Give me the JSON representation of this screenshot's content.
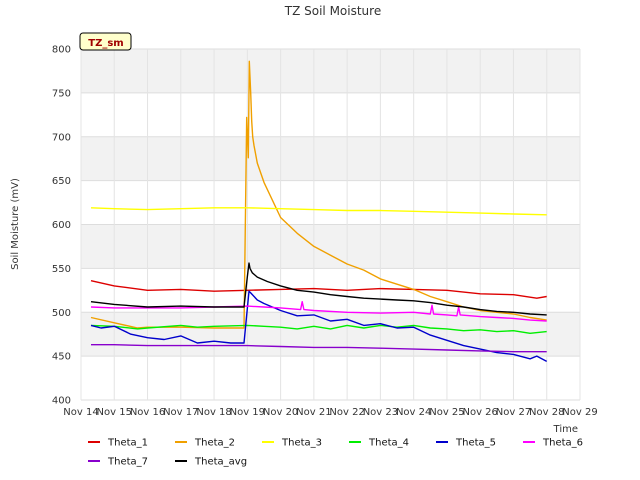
{
  "chart_data": {
    "type": "line",
    "title": "TZ Soil Moisture",
    "badge": "TZ_sm",
    "xlabel": "Time",
    "ylabel": "Soil Moisture (mV)",
    "xlim": [
      14,
      29
    ],
    "ylim": [
      400,
      800
    ],
    "x_ticks": [
      14,
      15,
      16,
      17,
      18,
      19,
      20,
      21,
      22,
      23,
      24,
      25,
      26,
      27,
      28,
      29
    ],
    "x_tick_labels": [
      "Nov 14",
      "Nov 15",
      "Nov 16",
      "Nov 17",
      "Nov 18",
      "Nov 19",
      "Nov 20",
      "Nov 21",
      "Nov 22",
      "Nov 23",
      "Nov 24",
      "Nov 25",
      "Nov 26",
      "Nov 27",
      "Nov 28",
      "Nov 29"
    ],
    "y_ticks": [
      400,
      450,
      500,
      550,
      600,
      650,
      700,
      750,
      800
    ],
    "y_tick_labels": [
      "400",
      "450",
      "500",
      "550",
      "600",
      "650",
      "700",
      "750",
      "800"
    ],
    "series": [
      {
        "name": "Theta_1",
        "color": "#dd0000",
        "x": [
          14.3,
          15,
          16,
          17,
          18,
          19,
          20,
          21,
          22,
          23,
          24,
          25,
          26,
          27,
          27.7,
          28
        ],
        "y": [
          536,
          530,
          525,
          526,
          524,
          525,
          526,
          527,
          525,
          527,
          526,
          525,
          521,
          520,
          516,
          518
        ]
      },
      {
        "name": "Theta_2",
        "color": "#f0a000",
        "x": [
          14.3,
          15,
          15.7,
          16,
          17,
          18,
          18.9,
          18.98,
          19.03,
          19.06,
          19.1,
          19.13,
          19.16,
          19.2,
          19.3,
          19.5,
          20,
          20.5,
          21,
          21.5,
          22,
          22.5,
          23,
          23.5,
          24,
          24.5,
          25,
          25.5,
          26,
          26.5,
          27,
          27.5,
          28
        ],
        "y": [
          494,
          488,
          482,
          483,
          483,
          482,
          482,
          722,
          676,
          786,
          750,
          718,
          700,
          690,
          670,
          648,
          608,
          590,
          575,
          565,
          555,
          548,
          538,
          532,
          526,
          518,
          512,
          506,
          502,
          500,
          498,
          494,
          491
        ]
      },
      {
        "name": "Theta_3",
        "color": "#ffff00",
        "x": [
          14.3,
          15,
          16,
          17,
          18,
          19,
          20,
          21,
          22,
          23,
          24,
          25,
          26,
          27,
          28
        ],
        "y": [
          619,
          618,
          617,
          618,
          619,
          619,
          618,
          617,
          616,
          616,
          615,
          614,
          613,
          612,
          611
        ]
      },
      {
        "name": "Theta_4",
        "color": "#00ee00",
        "x": [
          14.3,
          15,
          15.7,
          16,
          17,
          17.5,
          18,
          19,
          19.5,
          20,
          20.5,
          21,
          21.5,
          22,
          22.5,
          23,
          23.5,
          24,
          24.5,
          25,
          25.5,
          26,
          26.5,
          27,
          27.5,
          28
        ],
        "y": [
          485,
          484,
          481,
          482,
          485,
          483,
          484,
          485,
          484,
          483,
          481,
          484,
          481,
          485,
          482,
          485,
          483,
          485,
          482,
          481,
          479,
          480,
          478,
          479,
          476,
          478
        ]
      },
      {
        "name": "Theta_5",
        "color": "#0000cc",
        "x": [
          14.3,
          14.6,
          15,
          15.5,
          16,
          16.5,
          17,
          17.5,
          18,
          18.5,
          18.9,
          19.05,
          19.1,
          19.3,
          19.5,
          20,
          20.5,
          21,
          21.5,
          22,
          22.5,
          23,
          23.5,
          24,
          24.5,
          25,
          25.5,
          26,
          26.5,
          27,
          27.5,
          27.7,
          28
        ],
        "y": [
          485,
          482,
          484,
          475,
          471,
          469,
          473,
          465,
          467,
          465,
          465,
          524,
          522,
          514,
          510,
          502,
          496,
          497,
          490,
          492,
          485,
          487,
          482,
          483,
          474,
          468,
          462,
          458,
          454,
          452,
          447,
          450,
          444
        ]
      },
      {
        "name": "Theta_6",
        "color": "#ff00ff",
        "x": [
          14.3,
          15,
          16,
          17,
          18,
          19,
          19.5,
          20,
          20.6,
          20.65,
          20.7,
          21,
          22,
          23,
          24,
          24.5,
          24.55,
          24.6,
          25,
          25.3,
          25.35,
          25.4,
          26,
          26.5,
          27,
          27.5,
          28
        ],
        "y": [
          506,
          505,
          505,
          505,
          506,
          507,
          506,
          505,
          503,
          512,
          503,
          502,
          500,
          499,
          500,
          498,
          508,
          498,
          497,
          496,
          506,
          497,
          495,
          494,
          493,
          491,
          490
        ]
      },
      {
        "name": "Theta_7",
        "color": "#8800cc",
        "x": [
          14.3,
          15,
          16,
          17,
          18,
          19,
          20,
          21,
          22,
          23,
          24,
          25,
          26,
          27,
          28
        ],
        "y": [
          463,
          463,
          462,
          462,
          462,
          462,
          461,
          460,
          460,
          459,
          458,
          457,
          456,
          455,
          455
        ]
      },
      {
        "name": "Theta_avg",
        "color": "#000000",
        "x": [
          14.3,
          15,
          16,
          17,
          18,
          18.9,
          19,
          19.05,
          19.08,
          19.15,
          19.3,
          19.6,
          20,
          20.5,
          21,
          21.5,
          22,
          22.5,
          23,
          23.5,
          24,
          24.5,
          25,
          25.5,
          26,
          26.5,
          27,
          27.5,
          28
        ],
        "y": [
          512,
          509,
          506,
          507,
          506,
          506,
          540,
          556,
          550,
          545,
          540,
          535,
          530,
          525,
          523,
          520,
          518,
          516,
          515,
          514,
          513,
          511,
          508,
          506,
          503,
          501,
          500,
          498,
          497
        ]
      }
    ],
    "legend_position": "bottom",
    "grid": true
  }
}
